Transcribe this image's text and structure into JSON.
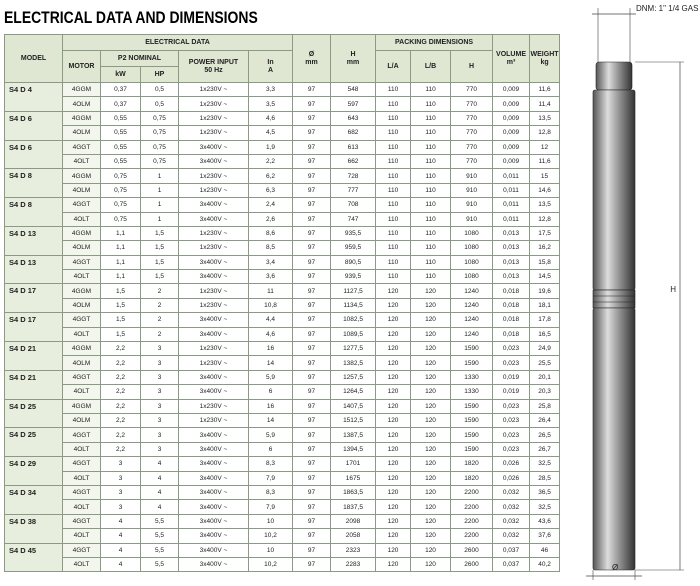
{
  "title": "ELECTRICAL DATA AND DIMENSIONS",
  "table": {
    "header": {
      "model": "MODEL",
      "electrical": "ELECTRICAL DATA",
      "motor": "MOTOR",
      "p2": "P2 NOMINAL",
      "kw": "kW",
      "hp": "HP",
      "power1": "POWER INPUT",
      "power2": "50 Hz",
      "in1": "In",
      "in2": "A",
      "dia1": "Ø",
      "dia2": "mm",
      "h1": "H",
      "h2": "mm",
      "packing": "PACKING DIMENSIONS",
      "la": "L/A",
      "lb": "L/B",
      "ph": "H",
      "vol1": "VOLUME",
      "vol2": "m³",
      "w1": "WEIGHT",
      "w2": "kg"
    },
    "rows": [
      {
        "model": "S4 D 4",
        "motors": [
          [
            "4GGM",
            "0,37",
            "0,5",
            "1x230V ~",
            "3,3",
            "97",
            "548",
            "110",
            "110",
            "770",
            "0,009",
            "11,6"
          ],
          [
            "4OLM",
            "0,37",
            "0,5",
            "1x230V ~",
            "3,5",
            "97",
            "597",
            "110",
            "110",
            "770",
            "0,009",
            "11,4"
          ]
        ]
      },
      {
        "model": "S4 D 6",
        "motors": [
          [
            "4GGM",
            "0,55",
            "0,75",
            "1x230V ~",
            "4,6",
            "97",
            "643",
            "110",
            "110",
            "770",
            "0,009",
            "13,5"
          ],
          [
            "4OLM",
            "0,55",
            "0,75",
            "1x230V ~",
            "4,5",
            "97",
            "682",
            "110",
            "110",
            "770",
            "0,009",
            "12,8"
          ]
        ]
      },
      {
        "model": "S4 D 6",
        "motors": [
          [
            "4GGT",
            "0,55",
            "0,75",
            "3x400V ~",
            "1,9",
            "97",
            "613",
            "110",
            "110",
            "770",
            "0,009",
            "12"
          ],
          [
            "4OLT",
            "0,55",
            "0,75",
            "3x400V ~",
            "2,2",
            "97",
            "662",
            "110",
            "110",
            "770",
            "0,009",
            "11,6"
          ]
        ]
      },
      {
        "model": "S4 D 8",
        "motors": [
          [
            "4GGM",
            "0,75",
            "1",
            "1x230V ~",
            "6,2",
            "97",
            "728",
            "110",
            "110",
            "910",
            "0,011",
            "15"
          ],
          [
            "4OLM",
            "0,75",
            "1",
            "1x230V ~",
            "6,3",
            "97",
            "777",
            "110",
            "110",
            "910",
            "0,011",
            "14,6"
          ]
        ]
      },
      {
        "model": "S4 D 8",
        "motors": [
          [
            "4GGT",
            "0,75",
            "1",
            "3x400V ~",
            "2,4",
            "97",
            "708",
            "110",
            "110",
            "910",
            "0,011",
            "13,5"
          ],
          [
            "4OLT",
            "0,75",
            "1",
            "3x400V ~",
            "2,6",
            "97",
            "747",
            "110",
            "110",
            "910",
            "0,011",
            "12,8"
          ]
        ]
      },
      {
        "model": "S4 D 13",
        "motors": [
          [
            "4GGM",
            "1,1",
            "1,5",
            "1x230V ~",
            "8,6",
            "97",
            "935,5",
            "110",
            "110",
            "1080",
            "0,013",
            "17,5"
          ],
          [
            "4OLM",
            "1,1",
            "1,5",
            "1x230V ~",
            "8,5",
            "97",
            "959,5",
            "110",
            "110",
            "1080",
            "0,013",
            "16,2"
          ]
        ]
      },
      {
        "model": "S4 D 13",
        "motors": [
          [
            "4GGT",
            "1,1",
            "1,5",
            "3x400V ~",
            "3,4",
            "97",
            "890,5",
            "110",
            "110",
            "1080",
            "0,013",
            "15,8"
          ],
          [
            "4OLT",
            "1,1",
            "1,5",
            "3x400V ~",
            "3,6",
            "97",
            "939,5",
            "110",
            "110",
            "1080",
            "0,013",
            "14,5"
          ]
        ]
      },
      {
        "model": "S4 D 17",
        "motors": [
          [
            "4GGM",
            "1,5",
            "2",
            "1x230V ~",
            "11",
            "97",
            "1127,5",
            "120",
            "120",
            "1240",
            "0,018",
            "19,6"
          ],
          [
            "4OLM",
            "1,5",
            "2",
            "1x230V ~",
            "10,8",
            "97",
            "1134,5",
            "120",
            "120",
            "1240",
            "0,018",
            "18,1"
          ]
        ]
      },
      {
        "model": "S4 D 17",
        "motors": [
          [
            "4GGT",
            "1,5",
            "2",
            "3x400V ~",
            "4,4",
            "97",
            "1082,5",
            "120",
            "120",
            "1240",
            "0,018",
            "17,8"
          ],
          [
            "4OLT",
            "1,5",
            "2",
            "3x400V ~",
            "4,6",
            "97",
            "1089,5",
            "120",
            "120",
            "1240",
            "0,018",
            "16,5"
          ]
        ]
      },
      {
        "model": "S4 D 21",
        "motors": [
          [
            "4GGM",
            "2,2",
            "3",
            "1x230V ~",
            "16",
            "97",
            "1277,5",
            "120",
            "120",
            "1590",
            "0,023",
            "24,9"
          ],
          [
            "4OLM",
            "2,2",
            "3",
            "1x230V ~",
            "14",
            "97",
            "1382,5",
            "120",
            "120",
            "1590",
            "0,023",
            "25,5"
          ]
        ]
      },
      {
        "model": "S4 D 21",
        "motors": [
          [
            "4GGT",
            "2,2",
            "3",
            "3x400V ~",
            "5,9",
            "97",
            "1257,5",
            "120",
            "120",
            "1330",
            "0,019",
            "20,1"
          ],
          [
            "4OLT",
            "2,2",
            "3",
            "3x400V ~",
            "6",
            "97",
            "1264,5",
            "120",
            "120",
            "1330",
            "0,019",
            "20,3"
          ]
        ]
      },
      {
        "model": "S4 D 25",
        "motors": [
          [
            "4GGM",
            "2,2",
            "3",
            "1x230V ~",
            "16",
            "97",
            "1407,5",
            "120",
            "120",
            "1590",
            "0,023",
            "25,8"
          ],
          [
            "4OLM",
            "2,2",
            "3",
            "1x230V ~",
            "14",
            "97",
            "1512,5",
            "120",
            "120",
            "1590",
            "0,023",
            "26,4"
          ]
        ]
      },
      {
        "model": "S4 D 25",
        "motors": [
          [
            "4GGT",
            "2,2",
            "3",
            "3x400V ~",
            "5,9",
            "97",
            "1387,5",
            "120",
            "120",
            "1590",
            "0,023",
            "26,5"
          ],
          [
            "4OLT",
            "2,2",
            "3",
            "3x400V ~",
            "6",
            "97",
            "1394,5",
            "120",
            "120",
            "1590",
            "0,023",
            "26,7"
          ]
        ]
      },
      {
        "model": "S4 D 29",
        "motors": [
          [
            "4GGT",
            "3",
            "4",
            "3x400V ~",
            "8,3",
            "97",
            "1701",
            "120",
            "120",
            "1820",
            "0,026",
            "32,5"
          ],
          [
            "4OLT",
            "3",
            "4",
            "3x400V ~",
            "7,9",
            "97",
            "1675",
            "120",
            "120",
            "1820",
            "0,026",
            "28,5"
          ]
        ]
      },
      {
        "model": "S4 D 34",
        "motors": [
          [
            "4GGT",
            "3",
            "4",
            "3x400V ~",
            "8,3",
            "97",
            "1863,5",
            "120",
            "120",
            "2200",
            "0,032",
            "36,5"
          ],
          [
            "4OLT",
            "3",
            "4",
            "3x400V ~",
            "7,9",
            "97",
            "1837,5",
            "120",
            "120",
            "2200",
            "0,032",
            "32,5"
          ]
        ]
      },
      {
        "model": "S4 D 38",
        "motors": [
          [
            "4GGT",
            "4",
            "5,5",
            "3x400V ~",
            "10",
            "97",
            "2098",
            "120",
            "120",
            "2200",
            "0,032",
            "43,6"
          ],
          [
            "4OLT",
            "4",
            "5,5",
            "3x400V ~",
            "10,2",
            "97",
            "2058",
            "120",
            "120",
            "2200",
            "0,032",
            "37,6"
          ]
        ]
      },
      {
        "model": "S4 D 45",
        "motors": [
          [
            "4GGT",
            "4",
            "5,5",
            "3x400V ~",
            "10",
            "97",
            "2323",
            "120",
            "120",
            "2600",
            "0,037",
            "46"
          ],
          [
            "4OLT",
            "4",
            "5,5",
            "3x400V ~",
            "10,2",
            "97",
            "2283",
            "120",
            "120",
            "2600",
            "0,037",
            "40,2"
          ]
        ]
      }
    ]
  },
  "drawing": {
    "dnm": "DNM: 1\" 1/4 GAS",
    "height": "H",
    "diameter": "Ø"
  }
}
